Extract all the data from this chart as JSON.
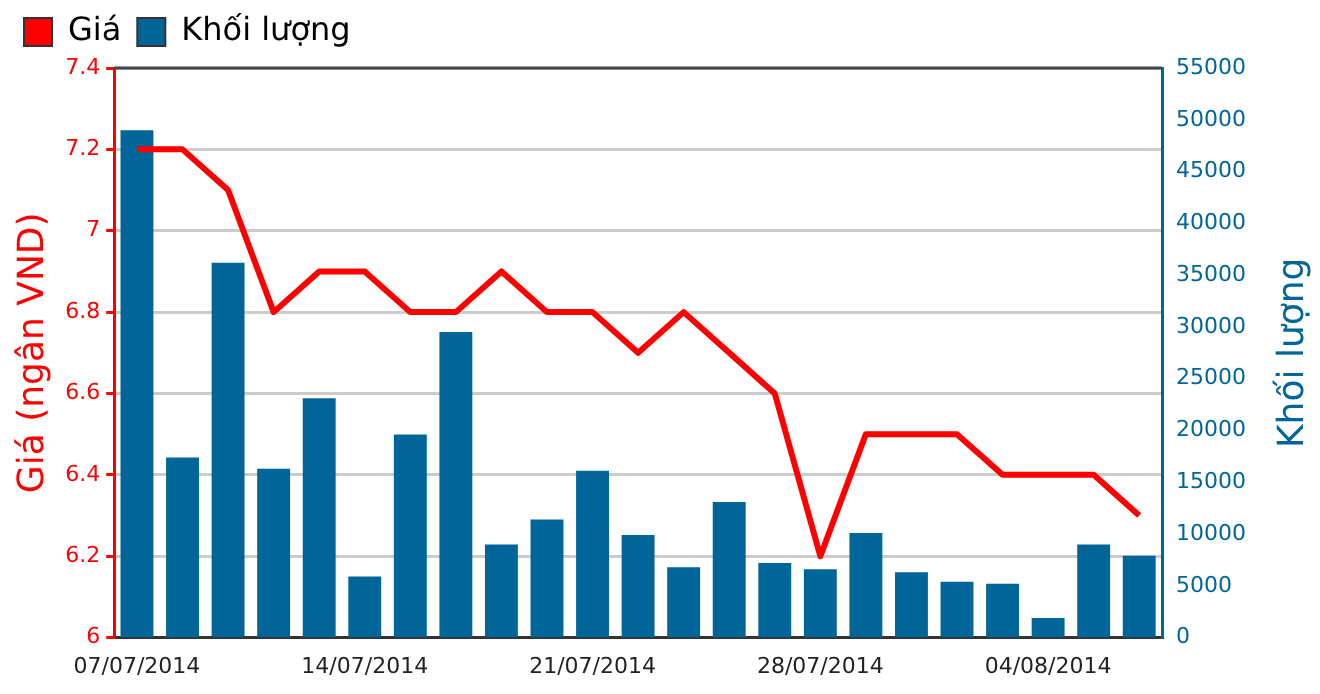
{
  "chart_data": {
    "type": "bar",
    "categories": [
      "07/07/2014",
      null,
      null,
      null,
      null,
      "14/07/2014",
      null,
      null,
      null,
      null,
      "21/07/2014",
      null,
      null,
      null,
      null,
      "28/07/2014",
      null,
      null,
      null,
      null,
      "04/08/2014",
      null,
      null
    ],
    "series": [
      {
        "name": "Giá",
        "type": "line",
        "axis": "y",
        "color": "#ff0000",
        "values": [
          7.2,
          7.2,
          7.1,
          6.8,
          6.9,
          6.9,
          6.8,
          6.8,
          6.9,
          6.8,
          6.8,
          6.7,
          6.8,
          6.7,
          6.6,
          6.2,
          6.5,
          6.5,
          6.5,
          6.4,
          6.4,
          6.4,
          6.3
        ]
      },
      {
        "name": "Khối lượng",
        "axis": "y2",
        "color": "#006699",
        "values": [
          49000,
          17400,
          36200,
          16300,
          23100,
          5900,
          19600,
          29500,
          9000,
          11400,
          16100,
          9900,
          6800,
          13100,
          7200,
          6600,
          10100,
          6300,
          5400,
          5200,
          1900,
          9000,
          7900
        ]
      }
    ],
    "ylabel": "Giá (ngân VND)",
    "y2label": "Khối lượng",
    "ylim": [
      6,
      7.4
    ],
    "yticks": [
      6,
      6.2,
      6.4,
      6.6,
      6.8,
      7,
      7.2,
      7.4
    ],
    "y2lim": [
      0,
      55000
    ],
    "y2ticks": [
      0,
      5000,
      10000,
      15000,
      20000,
      25000,
      30000,
      35000,
      40000,
      45000,
      50000,
      55000
    ],
    "grid": "y",
    "legend": "top left",
    "marker": "none"
  }
}
